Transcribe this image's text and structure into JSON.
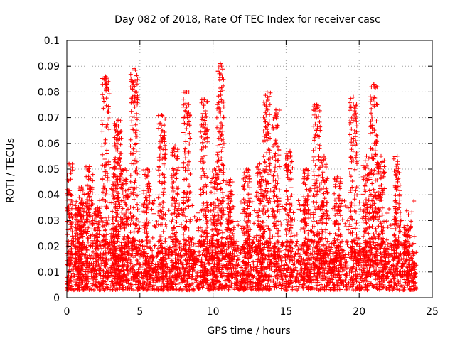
{
  "chart_data": {
    "type": "scatter",
    "title": "Day 082 of 2018, Rate Of TEC Index for receiver casc",
    "xlabel": "GPS time / hours",
    "ylabel": "ROTI / TECUs",
    "xlim": [
      0,
      25
    ],
    "ylim": [
      0,
      0.1
    ],
    "xticks": [
      0,
      5,
      10,
      15,
      20,
      25
    ],
    "xtick_labels": [
      "0",
      "5",
      "10",
      "15",
      "20",
      "25"
    ],
    "yticks": [
      0,
      0.01,
      0.02,
      0.03,
      0.04,
      0.05,
      0.06,
      0.07,
      0.08,
      0.09,
      0.1
    ],
    "ytick_labels": [
      "0",
      "0.01",
      "0.02",
      "0.03",
      "0.04",
      "0.05",
      "0.06",
      "0.07",
      "0.08",
      "0.09",
      "0.1"
    ],
    "grid": true,
    "marker": "+",
    "color": "#ff0000",
    "time_range_hours": [
      0,
      23.9
    ],
    "baseline_range": [
      0.003,
      0.022
    ],
    "spikes": [
      {
        "x": 0.15,
        "max": 0.052
      },
      {
        "x": 0.8,
        "max": 0.035
      },
      {
        "x": 1.0,
        "max": 0.043
      },
      {
        "x": 1.55,
        "max": 0.051
      },
      {
        "x": 2.1,
        "max": 0.035
      },
      {
        "x": 2.65,
        "max": 0.086
      },
      {
        "x": 3.3,
        "max": 0.051
      },
      {
        "x": 3.5,
        "max": 0.069
      },
      {
        "x": 4.0,
        "max": 0.05
      },
      {
        "x": 4.6,
        "max": 0.089
      },
      {
        "x": 5.5,
        "max": 0.05
      },
      {
        "x": 6.5,
        "max": 0.071
      },
      {
        "x": 7.4,
        "max": 0.059
      },
      {
        "x": 8.2,
        "max": 0.08
      },
      {
        "x": 9.4,
        "max": 0.077
      },
      {
        "x": 10.1,
        "max": 0.05
      },
      {
        "x": 10.5,
        "max": 0.091
      },
      {
        "x": 11.2,
        "max": 0.046
      },
      {
        "x": 12.3,
        "max": 0.05
      },
      {
        "x": 13.2,
        "max": 0.052
      },
      {
        "x": 13.7,
        "max": 0.08
      },
      {
        "x": 14.3,
        "max": 0.073
      },
      {
        "x": 15.2,
        "max": 0.057
      },
      {
        "x": 16.4,
        "max": 0.05
      },
      {
        "x": 17.1,
        "max": 0.075
      },
      {
        "x": 17.6,
        "max": 0.055
      },
      {
        "x": 18.5,
        "max": 0.047
      },
      {
        "x": 19.6,
        "max": 0.078
      },
      {
        "x": 20.5,
        "max": 0.055
      },
      {
        "x": 21.0,
        "max": 0.083
      },
      {
        "x": 21.5,
        "max": 0.055
      },
      {
        "x": 22.6,
        "max": 0.055
      },
      {
        "x": 23.3,
        "max": 0.028
      }
    ],
    "points_sample": [
      [
        2.65,
        0.086
      ],
      [
        2.7,
        0.082
      ],
      [
        4.6,
        0.089
      ],
      [
        4.65,
        0.078
      ],
      [
        6.5,
        0.071
      ],
      [
        6.55,
        0.065
      ],
      [
        8.2,
        0.08
      ],
      [
        8.25,
        0.07
      ],
      [
        9.4,
        0.077
      ],
      [
        9.45,
        0.066
      ],
      [
        10.5,
        0.091
      ],
      [
        10.55,
        0.087
      ],
      [
        10.6,
        0.076
      ],
      [
        10.55,
        0.066
      ],
      [
        13.7,
        0.08
      ],
      [
        13.75,
        0.073
      ],
      [
        14.3,
        0.073
      ],
      [
        17.1,
        0.075
      ],
      [
        19.6,
        0.078
      ],
      [
        19.65,
        0.071
      ],
      [
        21.0,
        0.083
      ],
      [
        21.05,
        0.082
      ],
      [
        3.5,
        0.069
      ],
      [
        3.55,
        0.064
      ],
      [
        0.15,
        0.052
      ],
      [
        1.55,
        0.051
      ],
      [
        15.2,
        0.057
      ]
    ]
  }
}
